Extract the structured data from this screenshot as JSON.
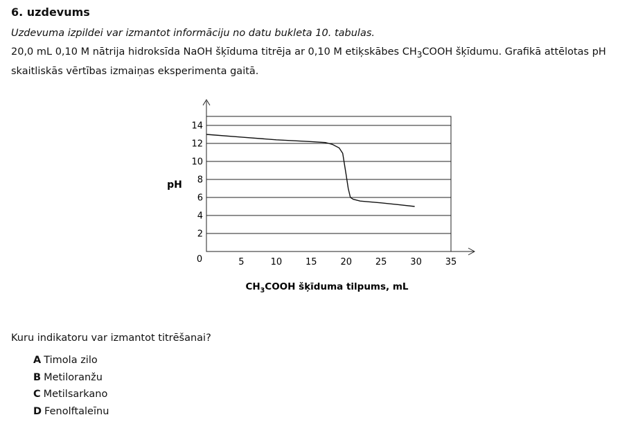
{
  "task": {
    "title": "6. uzdevums",
    "instruction": "Uzdevuma izpildei var izmantot informāciju no datu bukleta 10. tabulas.",
    "line1": {
      "a": "20,0 mL 0,10 M nātrija hidroksīda NaOH šķīduma titrēja ar 0,10 M etiķskābes CH",
      "sub": "3",
      "b": "COOH šķīdumu. Grafikā attēlotas pH"
    },
    "line2": "skaitliskās vērtības izmaiņas eksperimenta gaitā."
  },
  "chart_data": {
    "type": "line",
    "ylabel": "pH",
    "xlabel_parts": {
      "pre": "CH",
      "sub": "3",
      "post": "COOH šķīduma tilpums, mL"
    },
    "x_ticks": [
      5,
      10,
      15,
      20,
      25,
      30,
      35
    ],
    "y_ticks": [
      2,
      4,
      6,
      8,
      10,
      12,
      14
    ],
    "origin_label": "0",
    "xlim": [
      0,
      35
    ],
    "ylim": [
      0,
      15
    ],
    "grid": "horizontal",
    "series": [
      {
        "x": [
          0,
          5,
          10,
          15,
          17,
          18,
          19,
          19.5,
          20,
          20.3,
          20.6,
          21,
          22,
          25,
          27.5,
          29.8
        ],
        "y": [
          13.0,
          12.7,
          12.4,
          12.2,
          12.1,
          11.9,
          11.5,
          10.9,
          8.5,
          7.0,
          6.0,
          5.8,
          5.6,
          5.4,
          5.2,
          5.0
        ]
      }
    ]
  },
  "question": "Kuru indikatoru var izmantot titrēšanai?",
  "options": [
    {
      "letter": "A",
      "text": "Timola zilo"
    },
    {
      "letter": "B",
      "text": "Metiloranžu"
    },
    {
      "letter": "C",
      "text": "Metilsarkano"
    },
    {
      "letter": "D",
      "text": "Fenolftaleīnu"
    }
  ]
}
